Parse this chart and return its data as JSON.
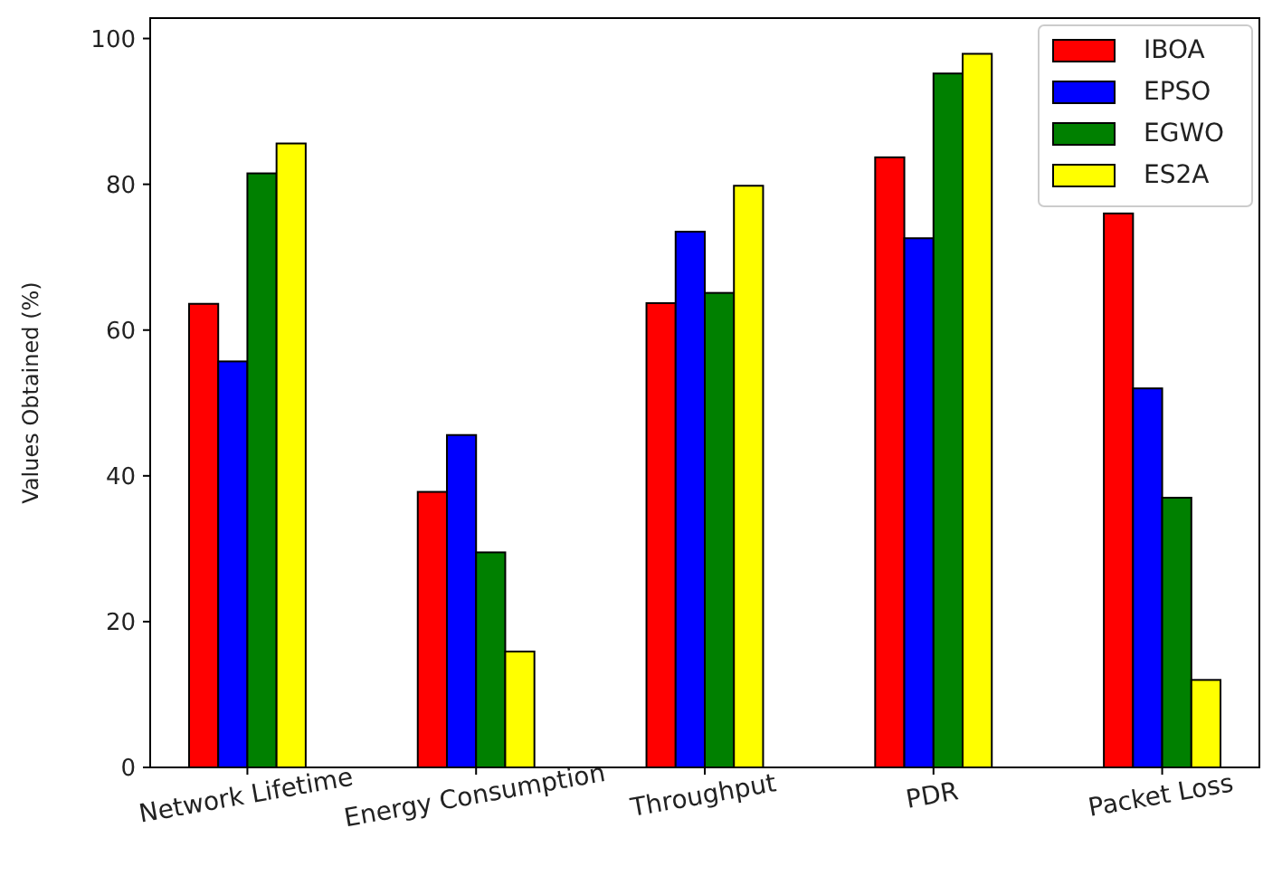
{
  "chart_data": {
    "type": "bar",
    "ylabel": "Values Obtained (%)",
    "categories": [
      "Network Lifetime",
      "Energy Consumption",
      "Throughput",
      "PDR",
      "Packet Loss"
    ],
    "series": [
      {
        "name": "IBOA",
        "color": "#ff0000",
        "values": [
          63.6,
          37.8,
          63.7,
          83.7,
          76
        ]
      },
      {
        "name": "EPSO",
        "color": "#0000ff",
        "values": [
          55.7,
          45.6,
          73.5,
          72.6,
          52
        ]
      },
      {
        "name": "EGWO",
        "color": "#008000",
        "values": [
          81.5,
          29.5,
          65.1,
          95.2,
          37
        ]
      },
      {
        "name": "ES2A",
        "color": "#ffff00",
        "values": [
          85.6,
          15.9,
          79.8,
          97.9,
          12
        ]
      }
    ],
    "ylim": [
      0,
      102.8
    ],
    "yticks": [
      0,
      20,
      40,
      60,
      80,
      100
    ],
    "grid": false,
    "legend": "top right"
  }
}
